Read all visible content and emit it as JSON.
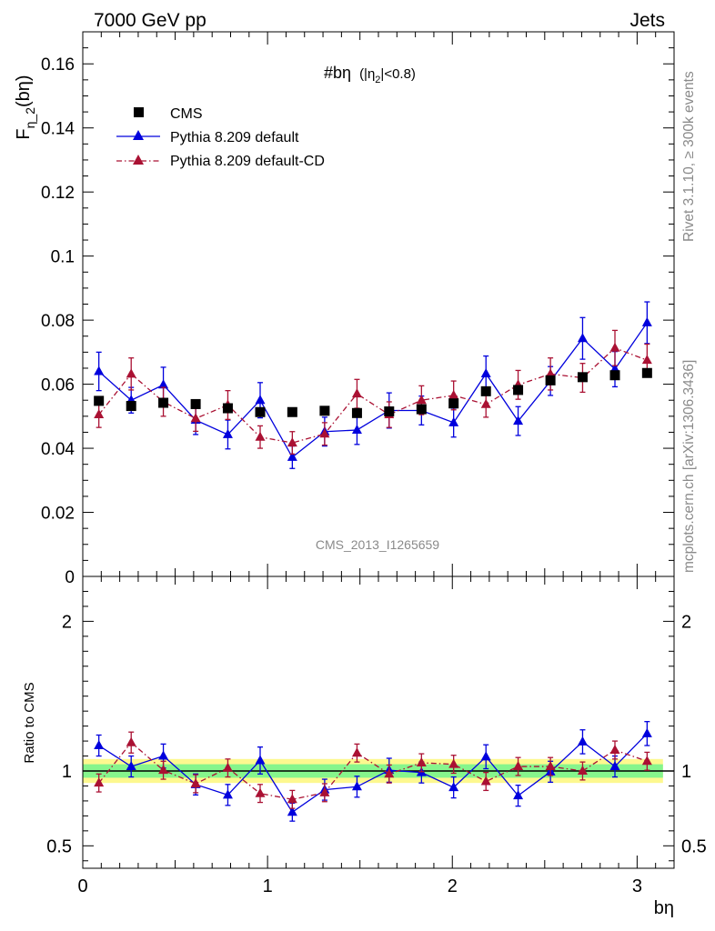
{
  "header": {
    "left": "7000 GeV pp",
    "right": "Jets"
  },
  "side_text": {
    "rivet": "Rivet 3.1.10, ≥ 300k events",
    "mcplots": "mcplots.cern.ch [arXiv:1306.3436]"
  },
  "watermark": "CMS_2013_I1265659",
  "colors": {
    "cms": "#000000",
    "default": "#0000dd",
    "cd": "#aa1133",
    "band_outer": "#fdf88f",
    "band_inner": "#86f58c"
  },
  "chart_data": [
    {
      "type": "scatter",
      "panel": "main",
      "title": "#bη",
      "title_suffix": "(|η",
      "title_suffix_sub": "2",
      "title_suffix_end": "|<0.8)",
      "ylabel": "F",
      "ylabel_sub": "η_2",
      "ylabel_tail": "(bη)",
      "xlim": [
        0,
        3.2
      ],
      "ylim": [
        0,
        0.17
      ],
      "yticks": [
        0,
        0.02,
        0.04,
        0.06,
        0.08,
        0.1,
        0.12,
        0.14,
        0.16
      ],
      "ytick_labels": [
        "0",
        "0.02",
        "0.04",
        "0.06",
        "0.08",
        "0.1",
        "0.12",
        "0.14",
        "0.16"
      ],
      "legend_position": "top-left",
      "x": [
        0.087,
        0.262,
        0.436,
        0.611,
        0.785,
        0.96,
        1.134,
        1.309,
        1.484,
        1.658,
        1.833,
        2.007,
        2.182,
        2.356,
        2.531,
        2.705,
        2.88,
        3.054
      ],
      "series": [
        {
          "name": "CMS",
          "style": "marker-square",
          "values": [
            0.0548,
            0.0532,
            0.0542,
            0.0538,
            0.0525,
            0.0513,
            0.0513,
            0.0517,
            0.051,
            0.0515,
            0.0522,
            0.054,
            0.0578,
            0.0582,
            0.0612,
            0.0622,
            0.0628,
            0.0635
          ]
        },
        {
          "name": "Pythia 8.209 default",
          "style": "line-triangle",
          "values": [
            0.064,
            0.055,
            0.0598,
            0.0488,
            0.0443,
            0.055,
            0.0372,
            0.0452,
            0.0457,
            0.0518,
            0.0518,
            0.048,
            0.0633,
            0.0485,
            0.061,
            0.0743,
            0.0647,
            0.0792
          ],
          "errors": [
            0.006,
            0.004,
            0.0055,
            0.0045,
            0.0045,
            0.0055,
            0.0035,
            0.0045,
            0.0045,
            0.0055,
            0.0045,
            0.0045,
            0.0055,
            0.0045,
            0.0045,
            0.0065,
            0.0055,
            0.0065
          ]
        },
        {
          "name": "Pythia 8.209 default-CD",
          "style": "dashdot-triangle",
          "values": [
            0.0505,
            0.0632,
            0.0545,
            0.0493,
            0.0535,
            0.0435,
            0.0417,
            0.0445,
            0.057,
            0.0505,
            0.055,
            0.0565,
            0.0537,
            0.0598,
            0.0632,
            0.062,
            0.0713,
            0.0675
          ],
          "errors": [
            0.004,
            0.005,
            0.0045,
            0.004,
            0.0045,
            0.0035,
            0.0035,
            0.0035,
            0.0045,
            0.004,
            0.0045,
            0.0045,
            0.004,
            0.0045,
            0.005,
            0.0045,
            0.0055,
            0.005
          ]
        }
      ]
    },
    {
      "type": "scatter",
      "panel": "ratio",
      "ylabel": "Ratio to CMS",
      "xlabel": "bη",
      "xlim": [
        0,
        3.2
      ],
      "ylim": [
        0.35,
        2.3
      ],
      "xticks": [
        0,
        1,
        2,
        3
      ],
      "xtick_labels": [
        "0",
        "1",
        "2",
        "3"
      ],
      "yticks": [
        0.5,
        1,
        2
      ],
      "ytick_labels": [
        "0.5",
        "1",
        "2"
      ],
      "reference_line": 1,
      "band_outer_halfwidth": 0.08,
      "band_inner_halfwidth": 0.045,
      "x": [
        0.087,
        0.262,
        0.436,
        0.611,
        0.785,
        0.96,
        1.134,
        1.309,
        1.484,
        1.658,
        1.833,
        2.007,
        2.182,
        2.356,
        2.531,
        2.705,
        2.88,
        3.054
      ],
      "series": [
        {
          "name": "Pythia 8.209 default",
          "style": "line-triangle",
          "values": [
            1.17,
            1.03,
            1.1,
            0.91,
            0.84,
            1.07,
            0.725,
            0.875,
            0.895,
            1.005,
            0.99,
            0.89,
            1.095,
            0.835,
            0.995,
            1.195,
            1.03,
            1.25
          ],
          "errors": [
            0.07,
            0.07,
            0.08,
            0.07,
            0.07,
            0.09,
            0.06,
            0.07,
            0.07,
            0.08,
            0.07,
            0.07,
            0.08,
            0.07,
            0.07,
            0.08,
            0.07,
            0.08
          ]
        },
        {
          "name": "Pythia 8.209 default-CD",
          "style": "dashdot-triangle",
          "values": [
            0.92,
            1.19,
            1.005,
            0.915,
            1.02,
            0.85,
            0.81,
            0.855,
            1.12,
            0.98,
            1.055,
            1.045,
            0.93,
            1.03,
            1.03,
            1.0,
            1.14,
            1.065
          ],
          "errors": [
            0.06,
            0.07,
            0.06,
            0.06,
            0.06,
            0.06,
            0.06,
            0.06,
            0.06,
            0.06,
            0.06,
            0.06,
            0.06,
            0.06,
            0.06,
            0.06,
            0.06,
            0.06
          ]
        }
      ]
    }
  ]
}
